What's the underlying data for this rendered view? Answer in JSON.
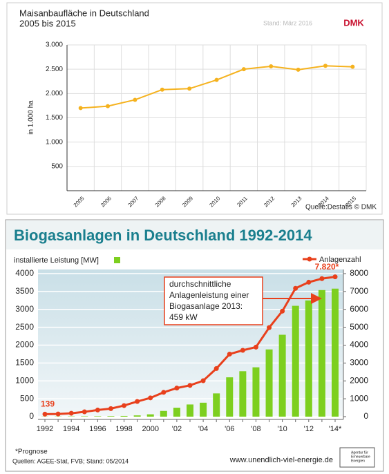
{
  "chart_data": [
    {
      "type": "line",
      "title": "Maisanbaufläche in Deutschland",
      "subtitle": "2005 bis 2015",
      "note": "Stand: März 2016",
      "logo": "DMK",
      "ylabel": "in 1.000 ha",
      "source": "Quelle:Destatis © DMK",
      "categories": [
        "2005",
        "2006",
        "2007",
        "2008",
        "2009",
        "2010",
        "2011",
        "2012",
        "2013",
        "2014",
        "2015"
      ],
      "values": [
        1700,
        1740,
        1870,
        2080,
        2100,
        2280,
        2500,
        2560,
        2490,
        2570,
        2550
      ],
      "color": "#f5b21e",
      "ylim": [
        0,
        3000
      ],
      "yticks": [
        500,
        {
          "value": 1000,
          "label": "1.000"
        },
        {
          "value": 1500,
          "label": "1.500"
        },
        {
          "value": 2000,
          "label": "2.000"
        },
        {
          "value": 2500,
          "label": "2.500"
        },
        {
          "value": 3000,
          "label": "3.000"
        }
      ],
      "grid": true
    },
    {
      "type": "bar_line",
      "title": "Biogasanlagen in Deutschland 1992-2014",
      "categories": [
        "1992",
        null,
        "1994",
        null,
        "1996",
        null,
        "1998",
        null,
        "2000",
        null,
        "'02",
        null,
        "'04",
        null,
        "'06",
        null,
        "'08",
        null,
        "'10",
        null,
        "'12",
        null,
        "'14*"
      ],
      "series": [
        {
          "name": "installierte Leistung [MW]",
          "color": "#7dcf1f",
          "axis": "y",
          "values": [
            5,
            6,
            8,
            10,
            12,
            15,
            20,
            35,
            65,
            160,
            250,
            340,
            390,
            650,
            1100,
            1270,
            1380,
            1880,
            2290,
            3100,
            3250,
            3540,
            3580
          ]
        },
        {
          "name": "Anlagenzahl",
          "color": "#e8401c",
          "axis": "y2",
          "values": [
            139,
            150,
            190,
            270,
            370,
            450,
            620,
            850,
            1050,
            1360,
            1600,
            1750,
            2010,
            2690,
            3500,
            3710,
            3890,
            4980,
            5900,
            7180,
            7520,
            7720,
            7820
          ],
          "value_labels": [
            "139",
            null,
            null,
            null,
            null,
            null,
            null,
            null,
            null,
            null,
            null,
            null,
            null,
            null,
            null,
            null,
            null,
            null,
            null,
            null,
            null,
            null,
            "7.820*"
          ]
        }
      ],
      "ylim": [
        0,
        4000
      ],
      "yticks": [
        0,
        500,
        1000,
        1500,
        2000,
        2500,
        3000,
        3500,
        4000
      ],
      "y2lim": [
        0,
        8000
      ],
      "y2ticks": [
        0,
        1000,
        2000,
        3000,
        4000,
        5000,
        6000,
        7000,
        8000
      ],
      "annotation": [
        "durchschnittliche",
        "Anlagenleistung einer",
        "Biogasanlage 2013:",
        "459 kW"
      ],
      "footnote": "*Prognose",
      "source": "Quellen: AGEE-Stat, FVB; Stand: 05/2014",
      "website": "www.unendlich-viel-energie.de",
      "logo": [
        "Agentur für",
        "Erneuerbare",
        "Energien"
      ],
      "grid": true
    }
  ]
}
